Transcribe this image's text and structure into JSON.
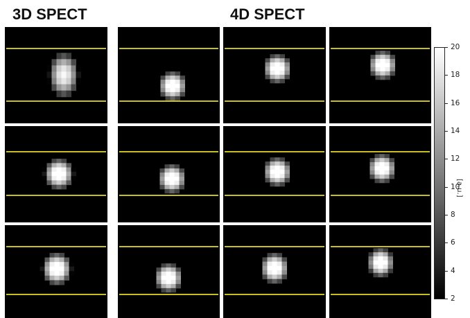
{
  "titles": {
    "left": "3D SPECT",
    "right": "4D SPECT"
  },
  "colorbar": {
    "ticks": [
      "20",
      "18",
      "16",
      "14",
      "12",
      "10",
      "8",
      "6",
      "4",
      "2"
    ],
    "unit": "[a.u.]",
    "min": 2,
    "max": 20
  },
  "colors": {
    "background": "#000000",
    "guide_line": "#c8c020",
    "blob_peak": "#ffffff"
  },
  "panels": [
    {
      "name": "3d-row1",
      "elongated": true
    },
    {
      "name": "4d-row1-col1"
    },
    {
      "name": "4d-row1-col2"
    },
    {
      "name": "4d-row1-col3"
    },
    {
      "name": "3d-row2"
    },
    {
      "name": "4d-row2-col1"
    },
    {
      "name": "4d-row2-col2"
    },
    {
      "name": "4d-row2-col3"
    },
    {
      "name": "3d-row3"
    },
    {
      "name": "4d-row3-col1"
    },
    {
      "name": "4d-row3-col2"
    },
    {
      "name": "4d-row3-col3"
    }
  ]
}
